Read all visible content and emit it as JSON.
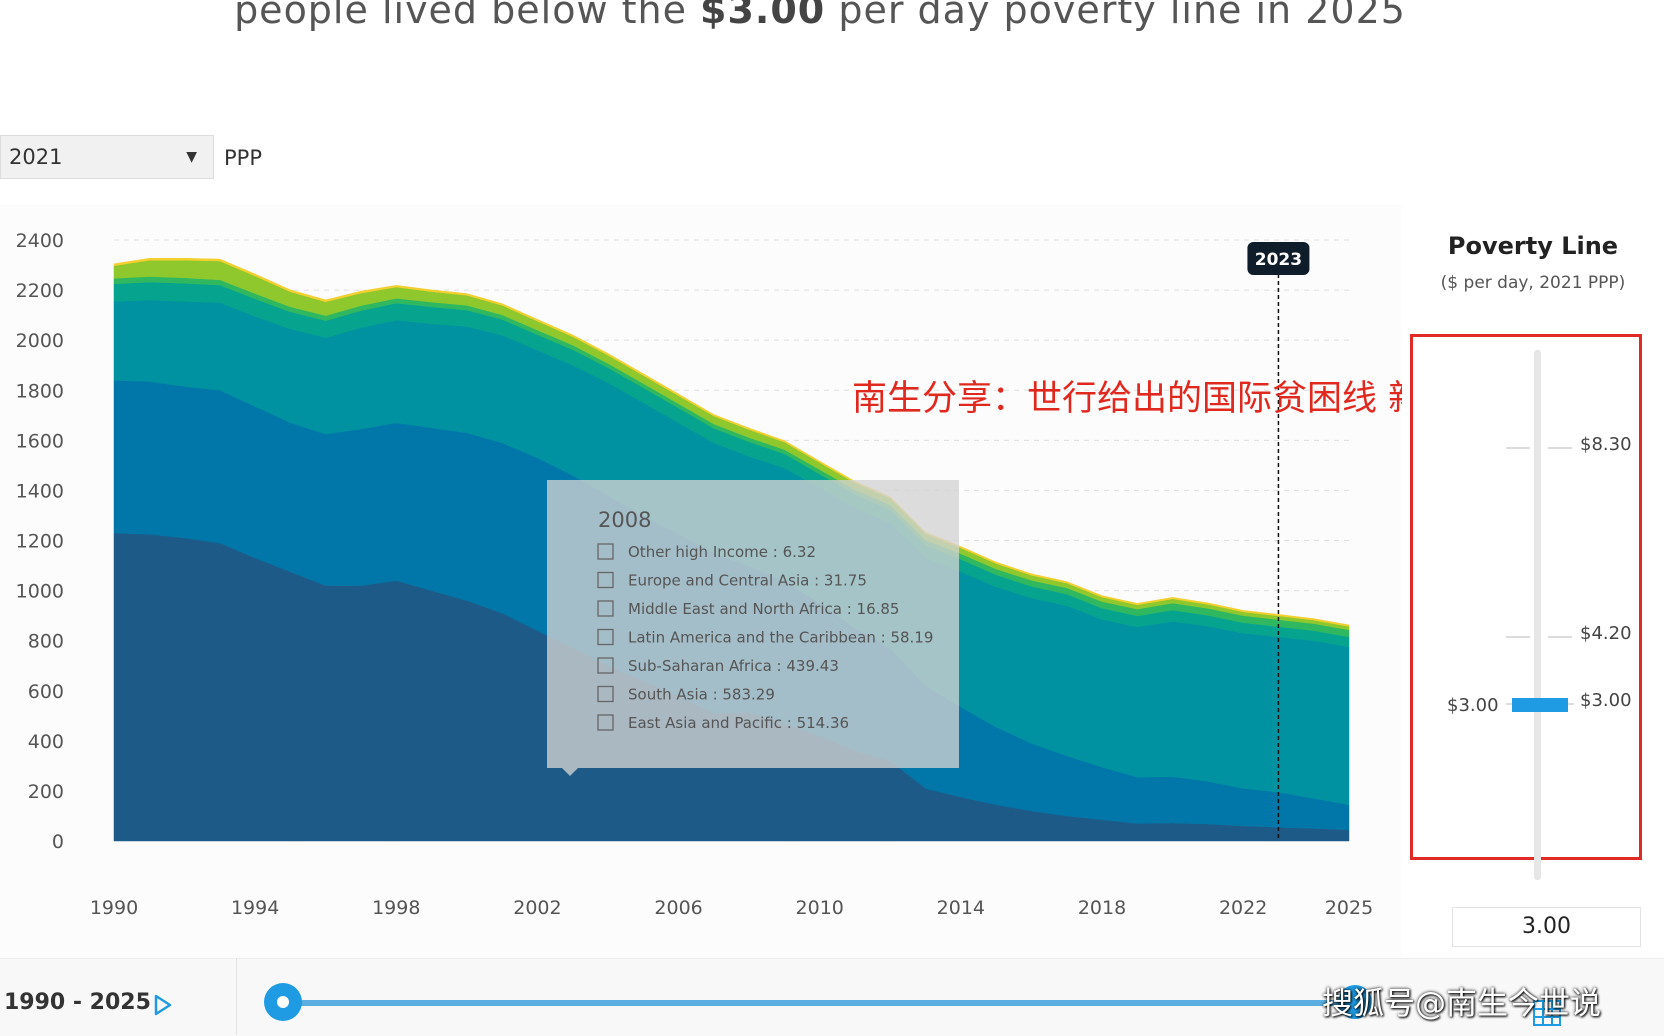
{
  "headline": {
    "pre": "people lived below the ",
    "bold": "$3.00",
    "post": " per day poverty line in 2025"
  },
  "controls": {
    "year_value": "2021",
    "ppp_label": "PPP"
  },
  "chart_data": {
    "type": "area",
    "stacked": true,
    "x": [
      1990,
      1991,
      1992,
      1993,
      1994,
      1995,
      1996,
      1997,
      1998,
      1999,
      2000,
      2001,
      2002,
      2003,
      2004,
      2005,
      2006,
      2007,
      2008,
      2009,
      2010,
      2011,
      2012,
      2013,
      2014,
      2015,
      2016,
      2017,
      2018,
      2019,
      2020,
      2021,
      2022,
      2023,
      2024,
      2025
    ],
    "x_ticks": [
      "1990",
      "1994",
      "1998",
      "2002",
      "2006",
      "2010",
      "2014",
      "2018",
      "2022",
      "2025"
    ],
    "y_ticks": [
      "0",
      "200",
      "400",
      "600",
      "800",
      "1000",
      "1200",
      "1400",
      "1600",
      "1800",
      "2000",
      "2200",
      "2400"
    ],
    "ylim": [
      0,
      2400
    ],
    "grid": true,
    "series": [
      {
        "name": "East Asia and Pacific",
        "color": "#1d5a87",
        "values": [
          1230,
          1225,
          1210,
          1190,
          1130,
          1075,
          1020,
          1020,
          1040,
          1000,
          960,
          910,
          840,
          770,
          700,
          640,
          580,
          510,
          514,
          470,
          420,
          360,
          320,
          210,
          175,
          145,
          120,
          100,
          85,
          70,
          72,
          68,
          60,
          55,
          50,
          45
        ]
      },
      {
        "name": "South Asia",
        "color": "#0077a8",
        "values": [
          610,
          610,
          605,
          610,
          605,
          595,
          605,
          625,
          630,
          650,
          670,
          680,
          690,
          690,
          680,
          660,
          645,
          640,
          583,
          570,
          530,
          490,
          450,
          410,
          360,
          310,
          270,
          240,
          210,
          185,
          185,
          170,
          150,
          140,
          120,
          100
        ]
      },
      {
        "name": "Sub-Saharan Africa",
        "color": "#0092a0",
        "values": [
          315,
          325,
          340,
          350,
          360,
          375,
          385,
          405,
          410,
          415,
          425,
          430,
          430,
          440,
          450,
          450,
          445,
          440,
          439,
          450,
          460,
          480,
          500,
          510,
          540,
          560,
          580,
          600,
          590,
          600,
          620,
          620,
          620,
          620,
          630,
          630
        ]
      },
      {
        "name": "Latin America and the Caribbean",
        "color": "#06a48e",
        "values": [
          70,
          72,
          72,
          70,
          70,
          68,
          68,
          68,
          68,
          68,
          65,
          63,
          62,
          62,
          60,
          60,
          59,
          58,
          58,
          56,
          55,
          54,
          52,
          51,
          50,
          48,
          47,
          46,
          45,
          44,
          45,
          43,
          42,
          41,
          40,
          40
        ]
      },
      {
        "name": "Middle East and North Africa",
        "color": "#2fb860",
        "values": [
          22,
          22,
          22,
          21,
          21,
          20,
          20,
          20,
          19,
          19,
          19,
          18,
          18,
          18,
          17,
          17,
          17,
          17,
          17,
          17,
          18,
          19,
          20,
          21,
          22,
          23,
          24,
          25,
          26,
          27,
          28,
          28,
          28,
          28,
          28,
          28
        ]
      },
      {
        "name": "Europe and Central Asia",
        "color": "#8ec82d",
        "values": [
          50,
          65,
          70,
          75,
          70,
          60,
          55,
          50,
          45,
          42,
          40,
          38,
          36,
          34,
          33,
          32,
          32,
          32,
          32,
          30,
          28,
          27,
          26,
          25,
          23,
          22,
          20,
          19,
          18,
          17,
          17,
          16,
          15,
          15,
          14,
          14
        ]
      },
      {
        "name": "Other high Income",
        "color": "#f3cf2f",
        "values": [
          8,
          8,
          8,
          8,
          8,
          8,
          8,
          8,
          7,
          7,
          7,
          7,
          7,
          7,
          7,
          7,
          7,
          6,
          6,
          6,
          6,
          6,
          6,
          6,
          6,
          6,
          6,
          6,
          6,
          6,
          6,
          6,
          6,
          6,
          6,
          6
        ]
      }
    ],
    "marker": {
      "x": 2023,
      "label": "2023"
    },
    "tooltip": {
      "title": "2008",
      "items": [
        "Other high Income : 6.32",
        "Europe and Central Asia : 31.75",
        "Middle East and North Africa : 16.85",
        "Latin America and the Caribbean : 58.19",
        "Sub-Saharan Africa : 439.43",
        "South Asia : 583.29",
        "East Asia and Pacific : 514.36"
      ]
    },
    "annotation": "南生分享：世行给出的国际贫困线 新数值"
  },
  "poverty_line": {
    "title": "Poverty Line",
    "subtitle": "($ per day, 2021 PPP)",
    "tick_830": "$8.30",
    "tick_420": "$4.20",
    "tick_300": "$3.00",
    "handle_label": "$3.00",
    "input_value": "3.00",
    "box_color": "#e02a26"
  },
  "timeline": {
    "range_label": "1990 - 2025"
  },
  "watermark": "搜狐号@南生今世说"
}
